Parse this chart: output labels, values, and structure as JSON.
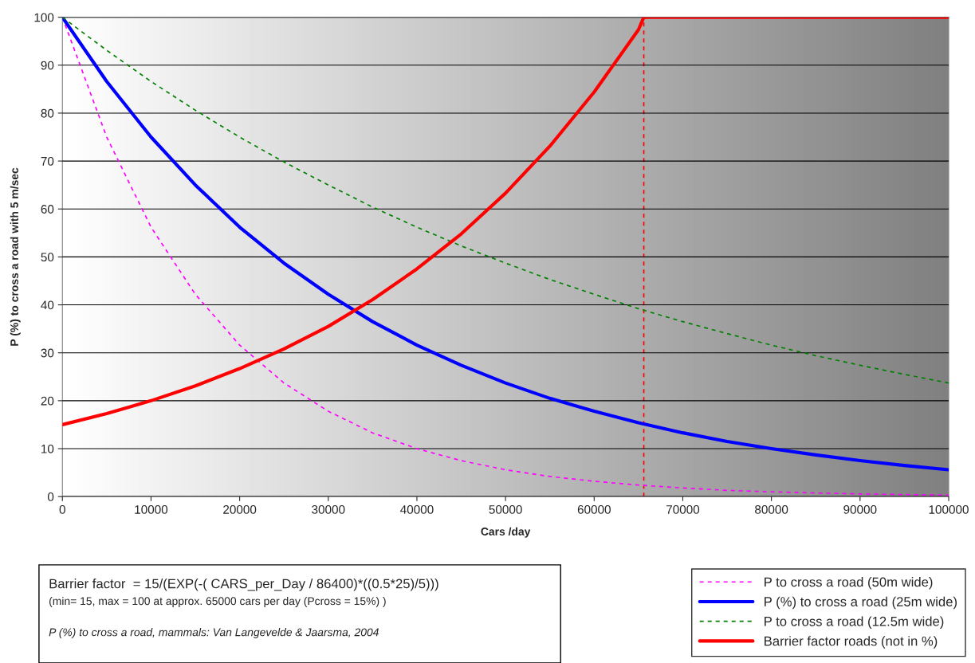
{
  "chart_data": {
    "type": "line",
    "xlabel": "Cars /day",
    "ylabel": "P (%) to cross a road with 5 m/sec",
    "x": [
      0,
      5000,
      10000,
      15000,
      20000,
      25000,
      30000,
      35000,
      40000,
      45000,
      50000,
      55000,
      60000,
      65000,
      70000,
      75000,
      80000,
      85000,
      90000,
      95000,
      100000
    ],
    "series": [
      {
        "name": "P to cross a road (50m wide)",
        "color": "#ff00ff",
        "line_style": "dashed",
        "values": [
          100,
          75,
          56.2,
          42.2,
          31.6,
          23.7,
          17.8,
          13.3,
          10,
          7.5,
          5.6,
          4.2,
          3.2,
          2.4,
          1.8,
          1.3,
          1.0,
          0.75,
          0.56,
          0.42,
          0.3
        ]
      },
      {
        "name": "P (%) to cross a road (25m wide)",
        "color": "#0000ff",
        "line_style": "solid",
        "values": [
          100,
          86.6,
          75,
          65,
          56.2,
          48.7,
          42.2,
          36.5,
          31.6,
          27.4,
          23.7,
          20.5,
          17.8,
          15.4,
          13.3,
          11.5,
          10,
          8.7,
          7.5,
          6.5,
          5.6
        ]
      },
      {
        "name": "P to cross a road (12.5m wide)",
        "color": "#008000",
        "line_style": "dashed",
        "values": [
          100,
          93.1,
          86.6,
          80.6,
          75,
          69.8,
          65,
          60.4,
          56.2,
          52.3,
          48.7,
          45.3,
          42.2,
          39.2,
          36.5,
          34,
          31.6,
          29.4,
          27.4,
          25.5,
          23.7
        ]
      },
      {
        "name": "Barrier factor roads (not in %)",
        "color": "#ff0000",
        "line_style": "solid",
        "x": [
          0,
          5000,
          10000,
          15000,
          20000,
          25000,
          30000,
          35000,
          40000,
          45000,
          50000,
          55000,
          60000,
          65000,
          65600,
          70000,
          75000,
          80000,
          85000,
          90000,
          95000,
          100000
        ],
        "values": [
          15,
          17.3,
          20,
          23.1,
          26.7,
          30.8,
          35.5,
          41.1,
          47.5,
          54.8,
          63.3,
          73.1,
          84.4,
          97.4,
          100,
          100,
          100,
          100,
          100,
          100,
          100,
          100
        ]
      }
    ],
    "ref_lines": [
      {
        "axis": "x",
        "value": 65600,
        "color": "#ff0000",
        "line_style": "dashed"
      }
    ],
    "xlim": [
      0,
      100000
    ],
    "xticks": [
      0,
      10000,
      20000,
      30000,
      40000,
      50000,
      60000,
      70000,
      80000,
      90000,
      100000
    ],
    "ylim": [
      0,
      100
    ],
    "yticks": [
      0,
      10,
      20,
      30,
      40,
      50,
      60,
      70,
      80,
      90,
      100
    ],
    "grid": "y",
    "legend": "bottom",
    "marker": "none",
    "annotations": [
      "Barrier factor  = 15/(EXP(-( CARS_per_Day / 86400)*((0.5*25)/5)))",
      "(min= 15, max = 100 at approx. 65000 cars per day (Pcross = 15%) )",
      "P (%) to cross a road, mammals: Van Langevelde & Jaarsma, 2004"
    ]
  }
}
